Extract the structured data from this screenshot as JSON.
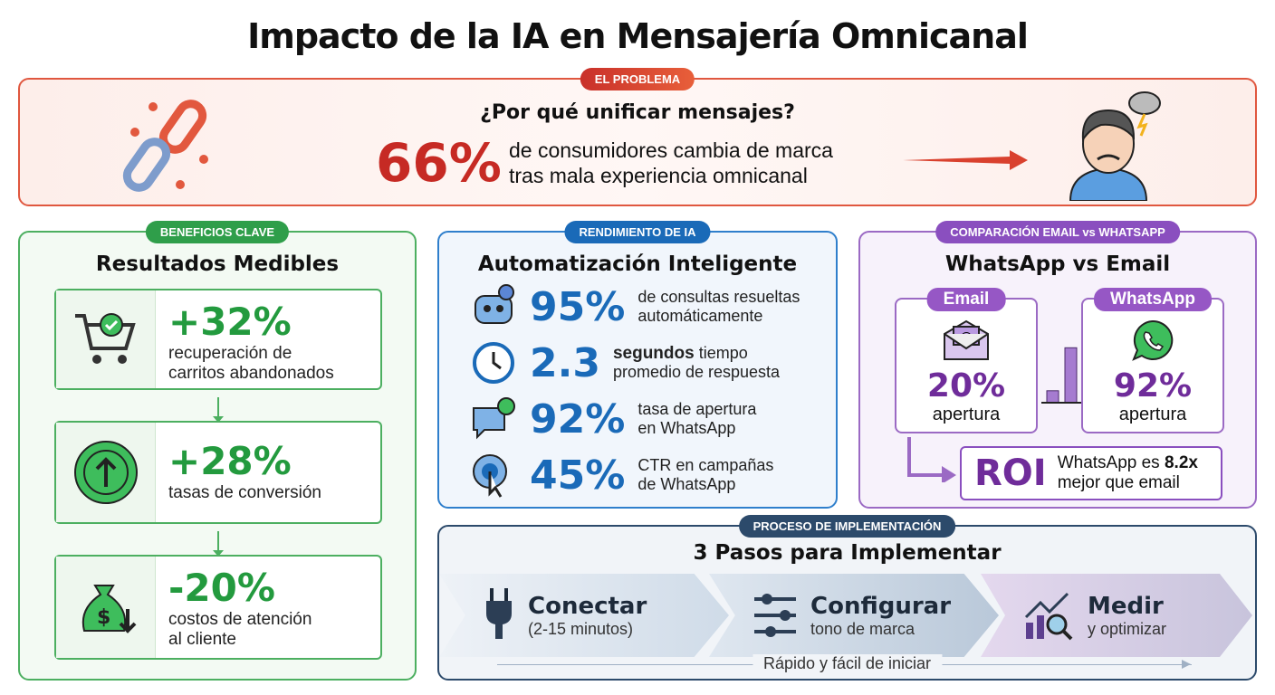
{
  "title": "Impacto de la IA en Mensajería Omnicanal",
  "colors": {
    "problem": "#d9412e",
    "benefits": "#2f9e4a",
    "performance": "#1a6ab8",
    "comparison": "#8a4fbf",
    "process": "#2c4a6b"
  },
  "problem": {
    "badge": "EL PROBLEMA",
    "heading": "¿Por qué unificar mensajes?",
    "stat": "66%",
    "line1": "de consumidores cambia de marca",
    "line2": "tras mala experiencia omnicanal",
    "icons": [
      "broken-chain-icon",
      "angry-person-icon"
    ]
  },
  "benefits": {
    "badge": "BENEFICIOS CLAVE",
    "heading": "Resultados Medibles",
    "items": [
      {
        "icon": "cart-check-icon",
        "value": "+32%",
        "line1": "recuperación de",
        "line2": "carritos abandonados"
      },
      {
        "icon": "arrow-up-circle-icon",
        "value": "+28%",
        "line1": "tasas de conversión",
        "line2": ""
      },
      {
        "icon": "money-bag-down-icon",
        "value": "-20%",
        "line1": "costos de atención",
        "line2": "al cliente"
      }
    ]
  },
  "performance": {
    "badge": "RENDIMIENTO DE IA",
    "heading": "Automatización Inteligente",
    "items": [
      {
        "icon": "robot-icon",
        "value": "95%",
        "extra": "",
        "line1": "de consultas resueltas",
        "line2": "automáticamente"
      },
      {
        "icon": "clock-icon",
        "value": "2.3",
        "extra": "segundos",
        "line1": "tiempo",
        "line2": "promedio de respuesta"
      },
      {
        "icon": "chat-check-icon",
        "value": "92%",
        "extra": "",
        "line1": "tasa de apertura",
        "line2": "en WhatsApp"
      },
      {
        "icon": "click-icon",
        "value": "45%",
        "extra": "",
        "line1": "CTR en campañas",
        "line2": "de WhatsApp"
      }
    ]
  },
  "comparison": {
    "badge": "COMPARACIÓN EMAIL vs WHATSAPP",
    "heading": "WhatsApp vs Email",
    "email": {
      "label": "Email",
      "value": "20%",
      "sub": "apertura"
    },
    "whatsapp": {
      "label": "WhatsApp",
      "value": "92%",
      "sub": "apertura"
    },
    "bars": [
      20,
      92
    ],
    "roi": {
      "label": "ROI",
      "line1": "WhatsApp es ",
      "bold": "8.2x",
      "line2": "mejor que email"
    }
  },
  "process": {
    "badge": "PROCESO DE IMPLEMENTACIÓN",
    "heading": "3 Pasos para Implementar",
    "steps": [
      {
        "icon": "plug-icon",
        "title": "Conectar",
        "sub": "(2-15 minutos)"
      },
      {
        "icon": "sliders-icon",
        "title": "Configurar",
        "sub": "tono de marca"
      },
      {
        "icon": "chart-magnifier-icon",
        "title": "Medir",
        "sub": "y optimizar"
      }
    ],
    "footer": "Rápido y fácil de iniciar"
  }
}
